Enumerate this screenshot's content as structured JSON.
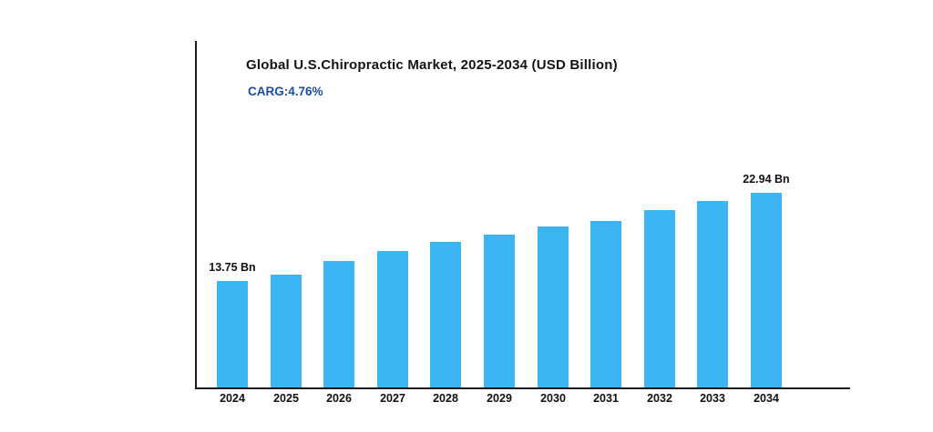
{
  "chart_data": {
    "type": "bar",
    "title": "Global U.S.Chiropractic Market, 2025-2034 (USD Billion)",
    "subtitle": "CARG:4.76%",
    "categories": [
      "2024",
      "2025",
      "2026",
      "2027",
      "2028",
      "2029",
      "2030",
      "2031",
      "2032",
      "2033",
      "2034"
    ],
    "values": [
      13.75,
      14.45,
      15.9,
      16.9,
      17.8,
      18.6,
      19.4,
      20.05,
      21.15,
      22.1,
      22.94
    ],
    "unit": "USD Billion",
    "data_labels": [
      {
        "index": 0,
        "text": "13.75 Bn"
      },
      {
        "index": 10,
        "text": "22.94 Bn"
      }
    ],
    "xlabel": "",
    "ylabel": "",
    "grid": false,
    "legend": "none",
    "y_axis_ticks": []
  },
  "colors": {
    "bar": "#3BB5F4",
    "subtitle_text": "#1C4DA4",
    "axis": "#1B1B1B",
    "title_text": "#141414",
    "tick_text": "#111111",
    "background": "#FFFFFF"
  }
}
